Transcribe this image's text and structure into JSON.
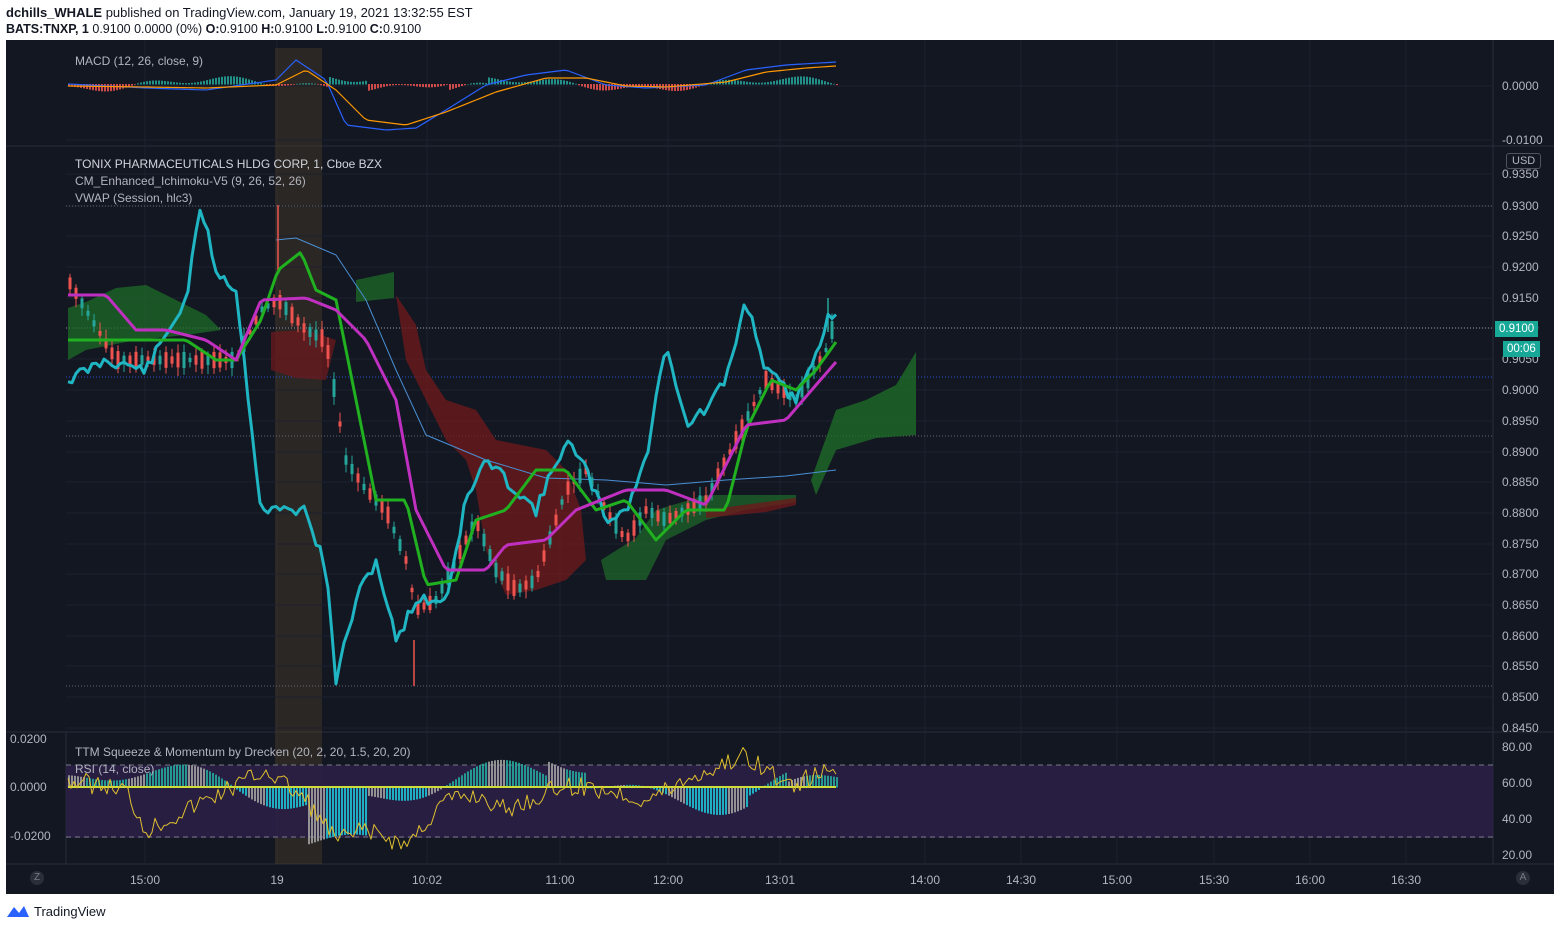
{
  "header": {
    "author": "dchills_WHALE",
    "published_text": "published on TradingView.com, January 19, 2021 13:32:55 EST",
    "symbol_line": {
      "symbol": "BATS:TNXP, 1",
      "values": "0.9100 0.0000 (0%)",
      "o_label": "O:",
      "o": "0.9100",
      "h_label": "H:",
      "h": "0.9100",
      "l_label": "L:",
      "l": "0.9100",
      "c_label": "C:",
      "c": "0.9100"
    }
  },
  "panes": {
    "macd": {
      "legend": "MACD (12, 26, close, 9)",
      "axis": [
        "0.0000",
        "-0.0100"
      ]
    },
    "price": {
      "title": "TONIX PHARMACEUTICALS HLDG CORP, 1, Cboe BZX",
      "indicator_1": "CM_Enhanced_Ichimoku-V5 (9, 26, 52, 26)",
      "indicator_2": "VWAP (Session, hlc3)",
      "currency": "USD",
      "axis": [
        "0.9350",
        "0.9300",
        "0.9250",
        "0.9200",
        "0.9150",
        "0.9100",
        "0.9050",
        "0.9000",
        "0.8950",
        "0.8900",
        "0.8850",
        "0.8800",
        "0.8750",
        "0.8700",
        "0.8650",
        "0.8600",
        "0.8550",
        "0.8500",
        "0.8450"
      ],
      "last_price": "0.9100",
      "countdown": "00:06"
    },
    "lower": {
      "legend_1": "TTM Squeeze & Momentum by Drecken (20, 2, 20, 1.5, 20, 20)",
      "legend_2": "RSI (14, close)",
      "left_axis": [
        "0.0200",
        "0.0000",
        "-0.0200"
      ],
      "right_axis": [
        "80.00",
        "60.00",
        "40.00",
        "20.00"
      ]
    }
  },
  "time_axis": [
    "15:00",
    "19",
    "10:02",
    "11:00",
    "12:00",
    "13:01",
    "14:00",
    "14:30",
    "15:00",
    "15:30",
    "16:00",
    "16:30"
  ],
  "corner_buttons": {
    "left": "Z",
    "right": "A"
  },
  "footer": {
    "brand": "TradingView"
  },
  "colors": {
    "background": "#131722",
    "up": "#26a69a",
    "down": "#ef5350",
    "tenkan": "#1fb5c2",
    "kijun": "#20b020",
    "magenta": "#c030c0",
    "cloud_up": "#1e6b28",
    "cloud_down": "#6b1a1c",
    "rsi": "#e0c030",
    "rsi_band": "#2a1f45",
    "last_price_badge": "#17a898"
  },
  "icons": [
    "tradingview-logo-icon"
  ]
}
